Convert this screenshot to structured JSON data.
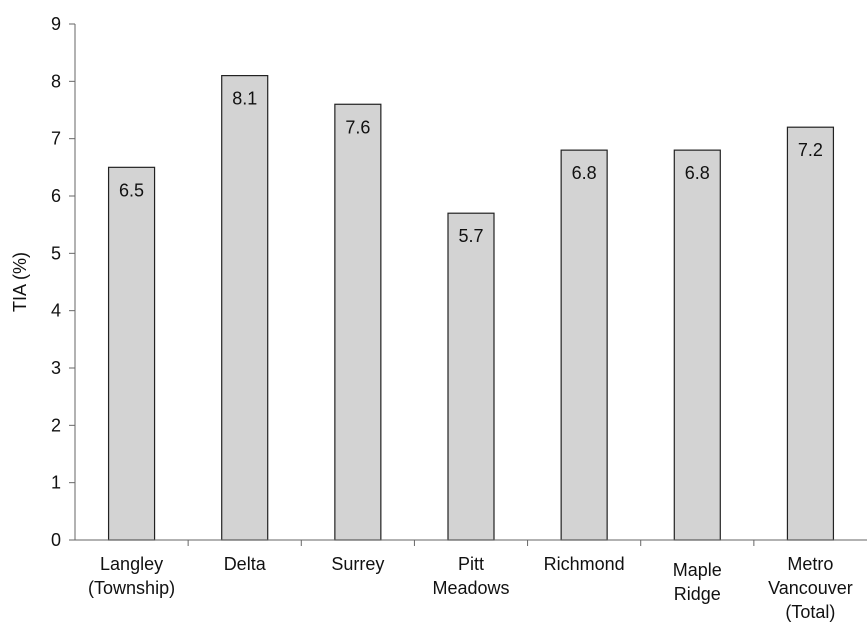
{
  "chart_data": {
    "type": "bar",
    "title": "",
    "xlabel": "",
    "ylabel": "TIA (%)",
    "ylim": [
      0,
      9
    ],
    "yticks": [
      "0",
      "1",
      "2",
      "3",
      "4",
      "5",
      "6",
      "7",
      "8",
      "9"
    ],
    "grid": false,
    "legend": "none",
    "categories": [
      [
        "Langley",
        "(Township)"
      ],
      [
        "Delta"
      ],
      [
        "Surrey"
      ],
      [
        "Pitt",
        "Meadows"
      ],
      [
        "Richmond"
      ],
      [
        "Maple",
        "Ridge"
      ],
      [
        "Metro",
        "Vancouver",
        "(Total)"
      ]
    ],
    "values": [
      6.5,
      8.1,
      7.6,
      5.7,
      6.8,
      6.8,
      7.2
    ],
    "data_labels": [
      "6.5",
      "8.1",
      "7.6",
      "5.7",
      "6.8",
      "6.8",
      "7.2"
    ],
    "colors": {
      "bar_fill": "#d3d3d3",
      "bar_stroke": "#222222",
      "axis": "#666666"
    }
  }
}
